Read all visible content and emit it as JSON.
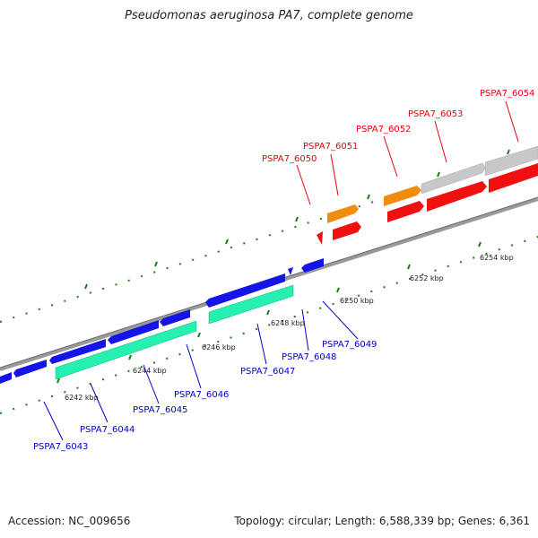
{
  "title": "Pseudomonas aeruginosa PA7, complete genome",
  "footer": {
    "accession": "Accession: NC_009656",
    "stats": "Topology: circular; Length: 6,588,339 bp; Genes: 6,361"
  },
  "colors": {
    "forward_label": "#e8000b",
    "reverse_label": "#0000c8",
    "blue_gene": "#1414e6",
    "green_gene": "#26f0b0",
    "red_gene": "#f01010",
    "orange_gene": "#f08c10",
    "grey_gene": "#c8c8c8",
    "backbone": "#8a8a8a",
    "tick": "#1a7a1a"
  },
  "tick_labels": [
    "6242 kbp",
    "6244 kbp",
    "6246 kbp",
    "6248 kbp",
    "6250 kbp",
    "6252 kbp",
    "6254 kbp"
  ],
  "forward_labels": [
    "PSPA7_6050",
    "PSPA7_6051",
    "PSPA7_6052",
    "PSPA7_6053",
    "PSPA7_6054"
  ],
  "reverse_labels": [
    "PSPA7_6043",
    "PSPA7_6044",
    "PSPA7_6045",
    "PSPA7_6046",
    "PSPA7_6047",
    "PSPA7_6048",
    "PSPA7_6049"
  ]
}
